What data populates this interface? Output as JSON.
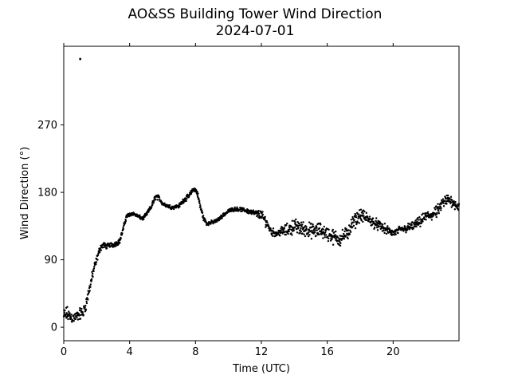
{
  "chart_data": {
    "type": "scatter",
    "title": "AO&SS Building Tower Wind Direction",
    "subtitle": "2024-07-01",
    "xlabel": "Time (UTC)",
    "ylabel": "Wind Direction (°)",
    "xlim": [
      0,
      24
    ],
    "ylim": [
      -18,
      375
    ],
    "xticks": [
      0,
      4,
      8,
      12,
      16,
      20
    ],
    "yticks": [
      0,
      90,
      180,
      270
    ],
    "grid": false,
    "legend": "none",
    "marker_color": "#000000",
    "series": [
      {
        "trend_x": [
          0.0,
          0.2,
          0.4,
          0.6,
          0.8,
          1.0,
          1.2,
          1.4,
          1.6,
          1.8,
          2.0,
          2.2,
          2.4,
          2.6,
          2.8,
          3.0,
          3.2,
          3.4,
          3.6,
          3.8,
          4.0,
          4.2,
          4.5,
          4.8,
          5.0,
          5.3,
          5.6,
          5.8,
          6.0,
          6.3,
          6.6,
          7.0,
          7.3,
          7.6,
          7.9,
          8.1,
          8.3,
          8.5,
          8.7,
          9.0,
          9.3,
          9.6,
          10.0,
          10.4,
          10.8,
          11.2,
          11.6,
          12.0,
          12.3,
          12.6,
          12.9,
          13.2,
          13.6,
          14.0,
          14.4,
          14.8,
          15.2,
          15.6,
          16.0,
          16.4,
          16.8,
          17.2,
          17.6,
          18.0,
          18.4,
          18.8,
          19.2,
          19.6,
          20.0,
          20.4,
          20.8,
          21.2,
          21.6,
          22.0,
          22.4,
          22.7,
          23.0,
          23.3,
          23.6,
          24.0
        ],
        "trend_y": [
          15,
          18,
          14,
          12,
          15,
          18,
          20,
          35,
          55,
          75,
          90,
          105,
          110,
          108,
          110,
          110,
          112,
          115,
          130,
          148,
          150,
          152,
          148,
          145,
          150,
          160,
          175,
          172,
          165,
          162,
          160,
          162,
          170,
          175,
          185,
          180,
          160,
          145,
          138,
          140,
          142,
          148,
          155,
          158,
          157,
          155,
          152,
          150,
          140,
          128,
          125,
          128,
          130,
          135,
          132,
          130,
          128,
          130,
          125,
          120,
          118,
          125,
          140,
          150,
          145,
          140,
          135,
          130,
          125,
          130,
          132,
          135,
          140,
          148,
          150,
          155,
          165,
          170,
          168,
          160
        ],
        "spread_y": [
          12,
          12,
          10,
          9,
          8,
          10,
          10,
          10,
          8,
          8,
          6,
          5,
          5,
          4,
          4,
          4,
          4,
          4,
          5,
          4,
          3,
          3,
          3,
          3,
          3,
          4,
          5,
          4,
          3,
          3,
          3,
          3,
          4,
          4,
          4,
          5,
          6,
          4,
          3,
          3,
          3,
          3,
          3,
          3,
          3,
          4,
          5,
          8,
          8,
          6,
          6,
          7,
          10,
          12,
          12,
          12,
          12,
          12,
          12,
          12,
          12,
          12,
          12,
          10,
          10,
          9,
          8,
          7,
          6,
          6,
          7,
          7,
          8,
          9,
          9,
          10,
          10,
          10,
          9,
          8
        ],
        "outliers": [
          [
            1.0,
            358
          ]
        ]
      }
    ]
  }
}
